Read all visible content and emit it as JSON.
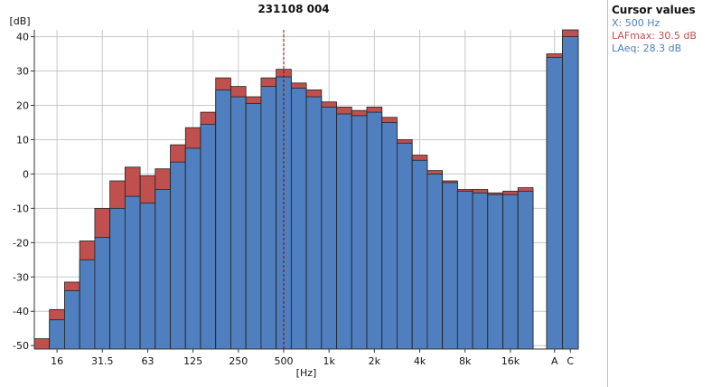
{
  "colors": {
    "laeq": "#4f7fbe",
    "lafmax": "#c0504d",
    "grid": "#c8c8c8",
    "cursor": "#8b0000",
    "text": "#111111"
  },
  "chart_data": {
    "type": "bar",
    "title": "231108 004",
    "ylabel": "[dB]",
    "xlabel": "[Hz]",
    "ylim": [
      -51,
      42
    ],
    "yticks": [
      -50,
      -40,
      -30,
      -20,
      -10,
      0,
      10,
      20,
      30,
      40
    ],
    "grid": true,
    "bar_style": "stacked-overlay",
    "categories": [
      "12.5",
      "16",
      "20",
      "25",
      "31.5",
      "40",
      "50",
      "63",
      "80",
      "100",
      "125",
      "160",
      "200",
      "250",
      "315",
      "400",
      "500",
      "630",
      "800",
      "1k",
      "1.25k",
      "1.6k",
      "2k",
      "2.5k",
      "3.15k",
      "4k",
      "5k",
      "6.3k",
      "8k",
      "10k",
      "12.5k",
      "16k",
      "20k"
    ],
    "x_tick_labels": [
      "16",
      "31.5",
      "63",
      "125",
      "250",
      "500",
      "1k",
      "2k",
      "4k",
      "8k",
      "16k"
    ],
    "series": [
      {
        "name": "LAFmax",
        "values": [
          -48,
          -39.5,
          -31.5,
          -19.5,
          -10,
          -2,
          2,
          -0.5,
          1.5,
          8.5,
          13.5,
          18,
          28,
          25.5,
          22.5,
          28,
          30.5,
          26.5,
          24.5,
          21,
          19.5,
          18.5,
          19.5,
          16.5,
          10,
          5.5,
          1,
          -2,
          -4.5,
          -4.5,
          -5.5,
          -5,
          -4
        ]
      },
      {
        "name": "LAeq",
        "values": [
          null,
          -42.5,
          -34,
          -25,
          -18.5,
          -10,
          -6.5,
          -8.5,
          -4.5,
          3.5,
          7.5,
          14.5,
          24.5,
          22.5,
          20.5,
          25.5,
          28.3,
          25,
          22.5,
          19.5,
          17.5,
          17,
          18,
          15,
          9,
          4,
          0,
          -2.5,
          -5,
          -5.5,
          -6,
          -6,
          -5
        ]
      }
    ],
    "overall": {
      "categories": [
        "A",
        "C"
      ],
      "LAFmax": [
        35,
        42
      ],
      "LAeq": [
        34,
        40
      ]
    },
    "cursor_x": "500"
  },
  "cursor_panel": {
    "title": "Cursor values",
    "x_text": "X: 500 Hz",
    "lafmax_text": "LAFmax: 30.5 dB",
    "laeq_text": "LAeq: 28.3 dB"
  }
}
